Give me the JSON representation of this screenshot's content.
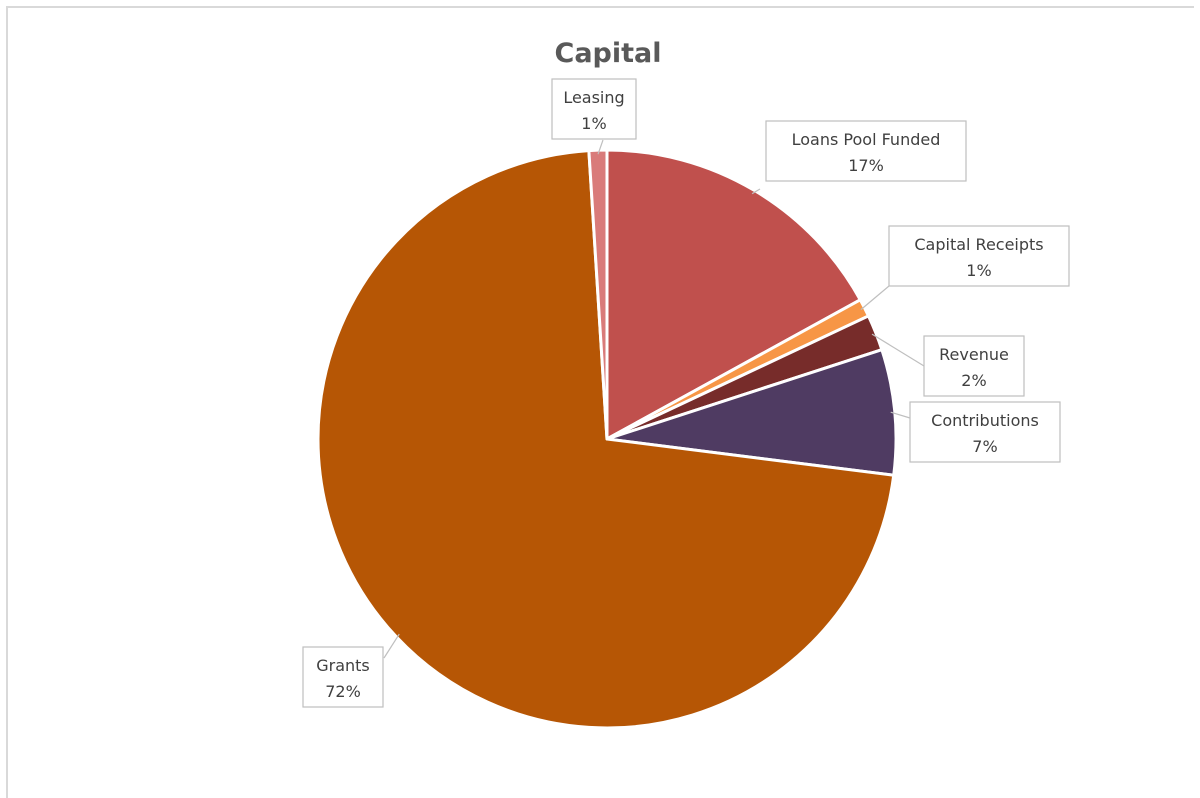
{
  "chart_data": {
    "type": "pie",
    "title": "Capital",
    "start_angle_deg": 0,
    "direction": "clockwise",
    "slices": [
      {
        "label": "Loans Pool Funded",
        "value": 17,
        "pct_label": "17%",
        "color": "#C0504D"
      },
      {
        "label": "Capital Receipts",
        "value": 1,
        "pct_label": "1%",
        "color": "#F79646"
      },
      {
        "label": "Revenue",
        "value": 2,
        "pct_label": "2%",
        "color": "#772C2A"
      },
      {
        "label": "Contributions",
        "value": 7,
        "pct_label": "7%",
        "color": "#4F3B62"
      },
      {
        "label": "Grants",
        "value": 72,
        "pct_label": "72%",
        "color": "#B65605"
      },
      {
        "label": "Leasing",
        "value": 1,
        "pct_label": "1%",
        "color": "#D97B7A"
      }
    ],
    "legend": "none",
    "data_labels": "callouts"
  }
}
